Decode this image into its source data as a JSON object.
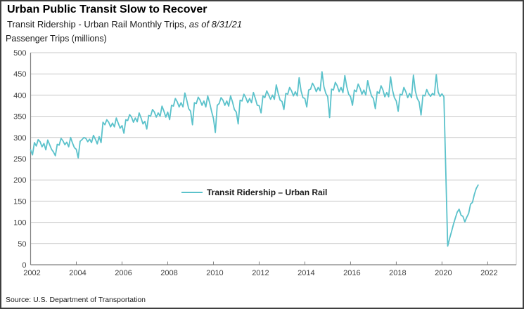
{
  "header": {
    "title": "Urban Public Transit Slow to Recover",
    "subtitle_main": "Transit Ridership - Urban Rail Monthly Trips, ",
    "subtitle_asof": "as of 8/31/21"
  },
  "footer": {
    "source": "Source: U.S. Department of Transportation"
  },
  "chart_data": {
    "type": "line",
    "title": "Urban Public Transit Slow to Recover",
    "subtitle": "Transit Ridership - Urban Rail Monthly Trips, as of 8/31/21",
    "y_axis_title": "Passenger Trips (millions)",
    "legend_label": "Transit Ridership – Urban Rail",
    "legend_position": "inside-left-center",
    "grid": "horizontal",
    "ylim": [
      0,
      500
    ],
    "y_ticks": [
      0,
      50,
      100,
      150,
      200,
      250,
      300,
      350,
      400,
      450,
      500
    ],
    "x_ticks": [
      2002,
      2004,
      2006,
      2008,
      2010,
      2012,
      2014,
      2016,
      2018,
      2020,
      2022
    ],
    "x_range_years": [
      2002.0,
      2023.25
    ],
    "data_start": "2002-01",
    "data_end": "2021-08",
    "colors": {
      "line": "#5bc2cb",
      "grid": "#c9c9c9",
      "axis": "#808080",
      "tick_text": "#404040"
    },
    "series": [
      {
        "name": "Transit Ridership – Urban Rail",
        "unit": "millions of passenger trips per month",
        "monthly_values_by_year": {
          "2002": [
            271,
            259,
            288,
            280,
            295,
            290,
            278,
            286,
            271,
            294,
            283,
            272
          ],
          "2003": [
            266,
            257,
            284,
            282,
            298,
            292,
            283,
            289,
            278,
            300,
            287,
            276
          ],
          "2004": [
            272,
            252,
            291,
            295,
            300,
            298,
            290,
            296,
            288,
            305,
            296,
            285
          ],
          "2005": [
            302,
            288,
            336,
            330,
            342,
            336,
            325,
            334,
            325,
            346,
            334,
            322
          ],
          "2006": [
            328,
            310,
            342,
            340,
            354,
            348,
            336,
            346,
            337,
            358,
            346,
            332
          ],
          "2007": [
            338,
            320,
            352,
            350,
            366,
            360,
            348,
            358,
            350,
            374,
            362,
            348
          ],
          "2008": [
            360,
            342,
            376,
            374,
            392,
            384,
            372,
            382,
            372,
            405,
            388,
            368
          ],
          "2009": [
            362,
            330,
            382,
            380,
            395,
            388,
            376,
            386,
            372,
            398,
            382,
            362
          ],
          "2010": [
            345,
            312,
            376,
            380,
            394,
            388,
            376,
            386,
            374,
            398,
            384,
            366
          ],
          "2011": [
            360,
            332,
            388,
            386,
            402,
            394,
            382,
            392,
            382,
            406,
            392,
            376
          ],
          "2012": [
            375,
            358,
            398,
            394,
            410,
            400,
            390,
            400,
            390,
            424,
            404,
            388
          ],
          "2013": [
            385,
            366,
            404,
            402,
            418,
            410,
            398,
            408,
            398,
            441,
            410,
            394
          ],
          "2014": [
            392,
            372,
            412,
            414,
            428,
            420,
            408,
            418,
            410,
            455,
            420,
            404
          ],
          "2015": [
            396,
            347,
            414,
            412,
            430,
            422,
            408,
            418,
            406,
            446,
            420,
            402
          ],
          "2016": [
            396,
            376,
            412,
            408,
            426,
            416,
            402,
            412,
            400,
            434,
            414,
            398
          ],
          "2017": [
            392,
            368,
            408,
            404,
            422,
            412,
            396,
            406,
            396,
            443,
            412,
            394
          ],
          "2018": [
            386,
            362,
            402,
            400,
            418,
            408,
            394,
            404,
            394,
            447,
            410,
            392
          ],
          "2019": [
            384,
            353,
            400,
            398,
            413,
            403,
            397,
            404,
            400,
            448,
            407,
            397
          ],
          "2020": [
            403,
            396,
            220,
            44,
            62,
            78,
            95,
            110,
            124,
            131,
            117,
            114
          ],
          "2021": [
            101,
            112,
            121,
            143,
            147,
            166,
            180,
            188
          ]
        }
      }
    ]
  }
}
